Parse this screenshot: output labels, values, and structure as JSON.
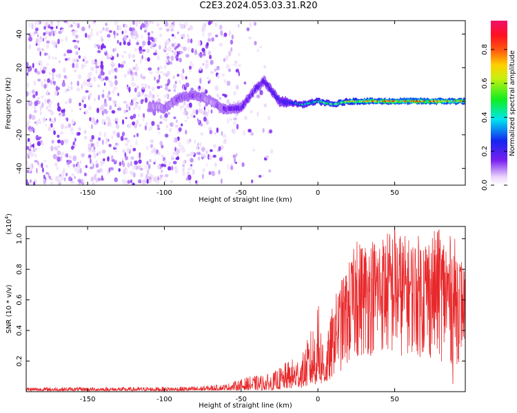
{
  "page_title": "C2E3.2024.053.03.31.R20",
  "chart_data": [
    {
      "type": "heatmap",
      "title": "C2E3.2024.053.03.31.R20",
      "xlabel": "Height of straight line (km)",
      "ylabel": "Frequency (Hz)",
      "xlim": [
        -190,
        96
      ],
      "ylim": [
        -50,
        48
      ],
      "x_ticks": [
        -150,
        -100,
        -50,
        0,
        50
      ],
      "y_ticks": [
        -40,
        -20,
        0,
        20,
        40
      ],
      "colorbar": {
        "label": "Normalized spectral amplitude",
        "range": [
          0,
          0.97
        ],
        "ticks": [
          0.0,
          0.2,
          0.4,
          0.6,
          0.8
        ],
        "tick_labels": [
          "0.0",
          "0.2",
          "0.4",
          "0.6",
          "0.8"
        ]
      },
      "signal_track": [
        {
          "x": -110,
          "y": -3,
          "amp": 0.15
        },
        {
          "x": -100,
          "y": -4,
          "amp": 0.18
        },
        {
          "x": -90,
          "y": 2,
          "amp": 0.22
        },
        {
          "x": -80,
          "y": 4,
          "amp": 0.22
        },
        {
          "x": -70,
          "y": 0,
          "amp": 0.15
        },
        {
          "x": -60,
          "y": -5,
          "amp": 0.25
        },
        {
          "x": -50,
          "y": -4,
          "amp": 0.3
        },
        {
          "x": -40,
          "y": 8,
          "amp": 0.28
        },
        {
          "x": -35,
          "y": 12,
          "amp": 0.3
        },
        {
          "x": -25,
          "y": 0,
          "amp": 0.35
        },
        {
          "x": -10,
          "y": -2,
          "amp": 0.45
        },
        {
          "x": 0,
          "y": 0,
          "amp": 0.55
        },
        {
          "x": 10,
          "y": -2,
          "amp": 0.6
        },
        {
          "x": 20,
          "y": 0,
          "amp": 0.7
        },
        {
          "x": 30,
          "y": 0,
          "amp": 0.8
        },
        {
          "x": 50,
          "y": 0,
          "amp": 0.85
        },
        {
          "x": 70,
          "y": 0,
          "amp": 0.85
        },
        {
          "x": 90,
          "y": 0,
          "amp": 0.8
        }
      ]
    },
    {
      "type": "line",
      "xlabel": "Height of straight line (km)",
      "ylabel": "SNR (10 * v/v)",
      "y_multiplier_label": "(x10",
      "y_multiplier_exp": "4",
      "y_multiplier_close": ")",
      "xlim": [
        -190,
        96
      ],
      "ylim": [
        0,
        1.08
      ],
      "x_ticks": [
        -150,
        -100,
        -50,
        0,
        50
      ],
      "y_ticks": [
        0.2,
        0.4,
        0.6,
        0.8,
        1.0
      ],
      "y_tick_labels": [
        "0.2",
        "0.4",
        "0.6",
        "0.8",
        "1.0"
      ],
      "line_color": "#e8282a",
      "envelope": [
        {
          "x": -190,
          "lo": 0.005,
          "hi": 0.03
        },
        {
          "x": -120,
          "lo": 0.005,
          "hi": 0.03
        },
        {
          "x": -80,
          "lo": 0.005,
          "hi": 0.035
        },
        {
          "x": -60,
          "lo": 0.01,
          "hi": 0.05
        },
        {
          "x": -45,
          "lo": 0.01,
          "hi": 0.1
        },
        {
          "x": -30,
          "lo": 0.01,
          "hi": 0.12
        },
        {
          "x": -20,
          "lo": 0.02,
          "hi": 0.2
        },
        {
          "x": -10,
          "lo": 0.03,
          "hi": 0.25
        },
        {
          "x": 0,
          "lo": 0.05,
          "hi": 0.55
        },
        {
          "x": 5,
          "lo": 0.05,
          "hi": 0.3
        },
        {
          "x": 10,
          "lo": 0.1,
          "hi": 0.6
        },
        {
          "x": 20,
          "lo": 0.15,
          "hi": 0.85
        },
        {
          "x": 25,
          "lo": 0.2,
          "hi": 0.98
        },
        {
          "x": 40,
          "lo": 0.25,
          "hi": 1.03
        },
        {
          "x": 50,
          "lo": 0.2,
          "hi": 1.08
        },
        {
          "x": 60,
          "lo": 0.25,
          "hi": 1.0
        },
        {
          "x": 70,
          "lo": 0.2,
          "hi": 1.05
        },
        {
          "x": 80,
          "lo": 0.2,
          "hi": 1.06
        },
        {
          "x": 90,
          "lo": 0.15,
          "hi": 1.0
        },
        {
          "x": 96,
          "lo": 0.3,
          "hi": 0.8
        }
      ],
      "peaks": [
        {
          "x": 0.5,
          "y": 0.56
        },
        {
          "x": 25.5,
          "y": 0.98
        },
        {
          "x": 50,
          "y": 1.08
        },
        {
          "x": 79,
          "y": 1.06
        },
        {
          "x": 88,
          "y": 0.05
        }
      ]
    }
  ]
}
